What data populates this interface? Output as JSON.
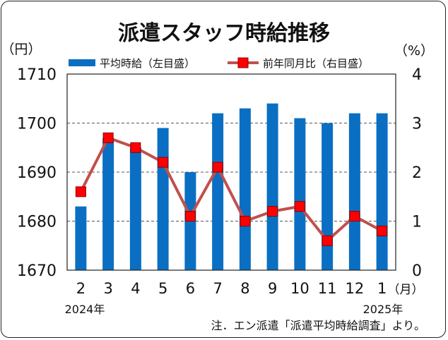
{
  "chart_data": {
    "type": "bar+line",
    "title": "派遣スタッフ時給推移",
    "left_unit": "（円）",
    "right_unit": "（%）",
    "x_unit": "（月）",
    "categories": [
      "2",
      "3",
      "4",
      "5",
      "6",
      "7",
      "8",
      "9",
      "10",
      "11",
      "12",
      "1"
    ],
    "year_labels": {
      "start": "2024年",
      "end": "2025年"
    },
    "y_left": {
      "min": 1670,
      "max": 1710,
      "ticks": [
        "1670",
        "1680",
        "1690",
        "1700",
        "1710"
      ]
    },
    "y_right": {
      "min": 0,
      "max": 4,
      "ticks": [
        "0",
        "1",
        "2",
        "3",
        "4"
      ]
    },
    "series": [
      {
        "name": "平均時給（左目盛）",
        "type": "bar",
        "axis": "left",
        "color": "#0a6fc2",
        "values": [
          1683,
          1697,
          1695,
          1699,
          1690,
          1702,
          1703,
          1704,
          1701,
          1700,
          1702,
          1702
        ]
      },
      {
        "name": "前年同月比（右目盛）",
        "type": "line",
        "axis": "right",
        "color": "#c0504d",
        "marker_color": "#ff0000",
        "values": [
          1.6,
          2.7,
          2.5,
          2.2,
          1.1,
          2.1,
          1.0,
          1.2,
          1.3,
          0.6,
          1.1,
          0.8
        ]
      }
    ],
    "grid": "horizontal dashed",
    "legend_placement": "top"
  },
  "note": "注．エン派遣「派遣平均時給調査」より。"
}
